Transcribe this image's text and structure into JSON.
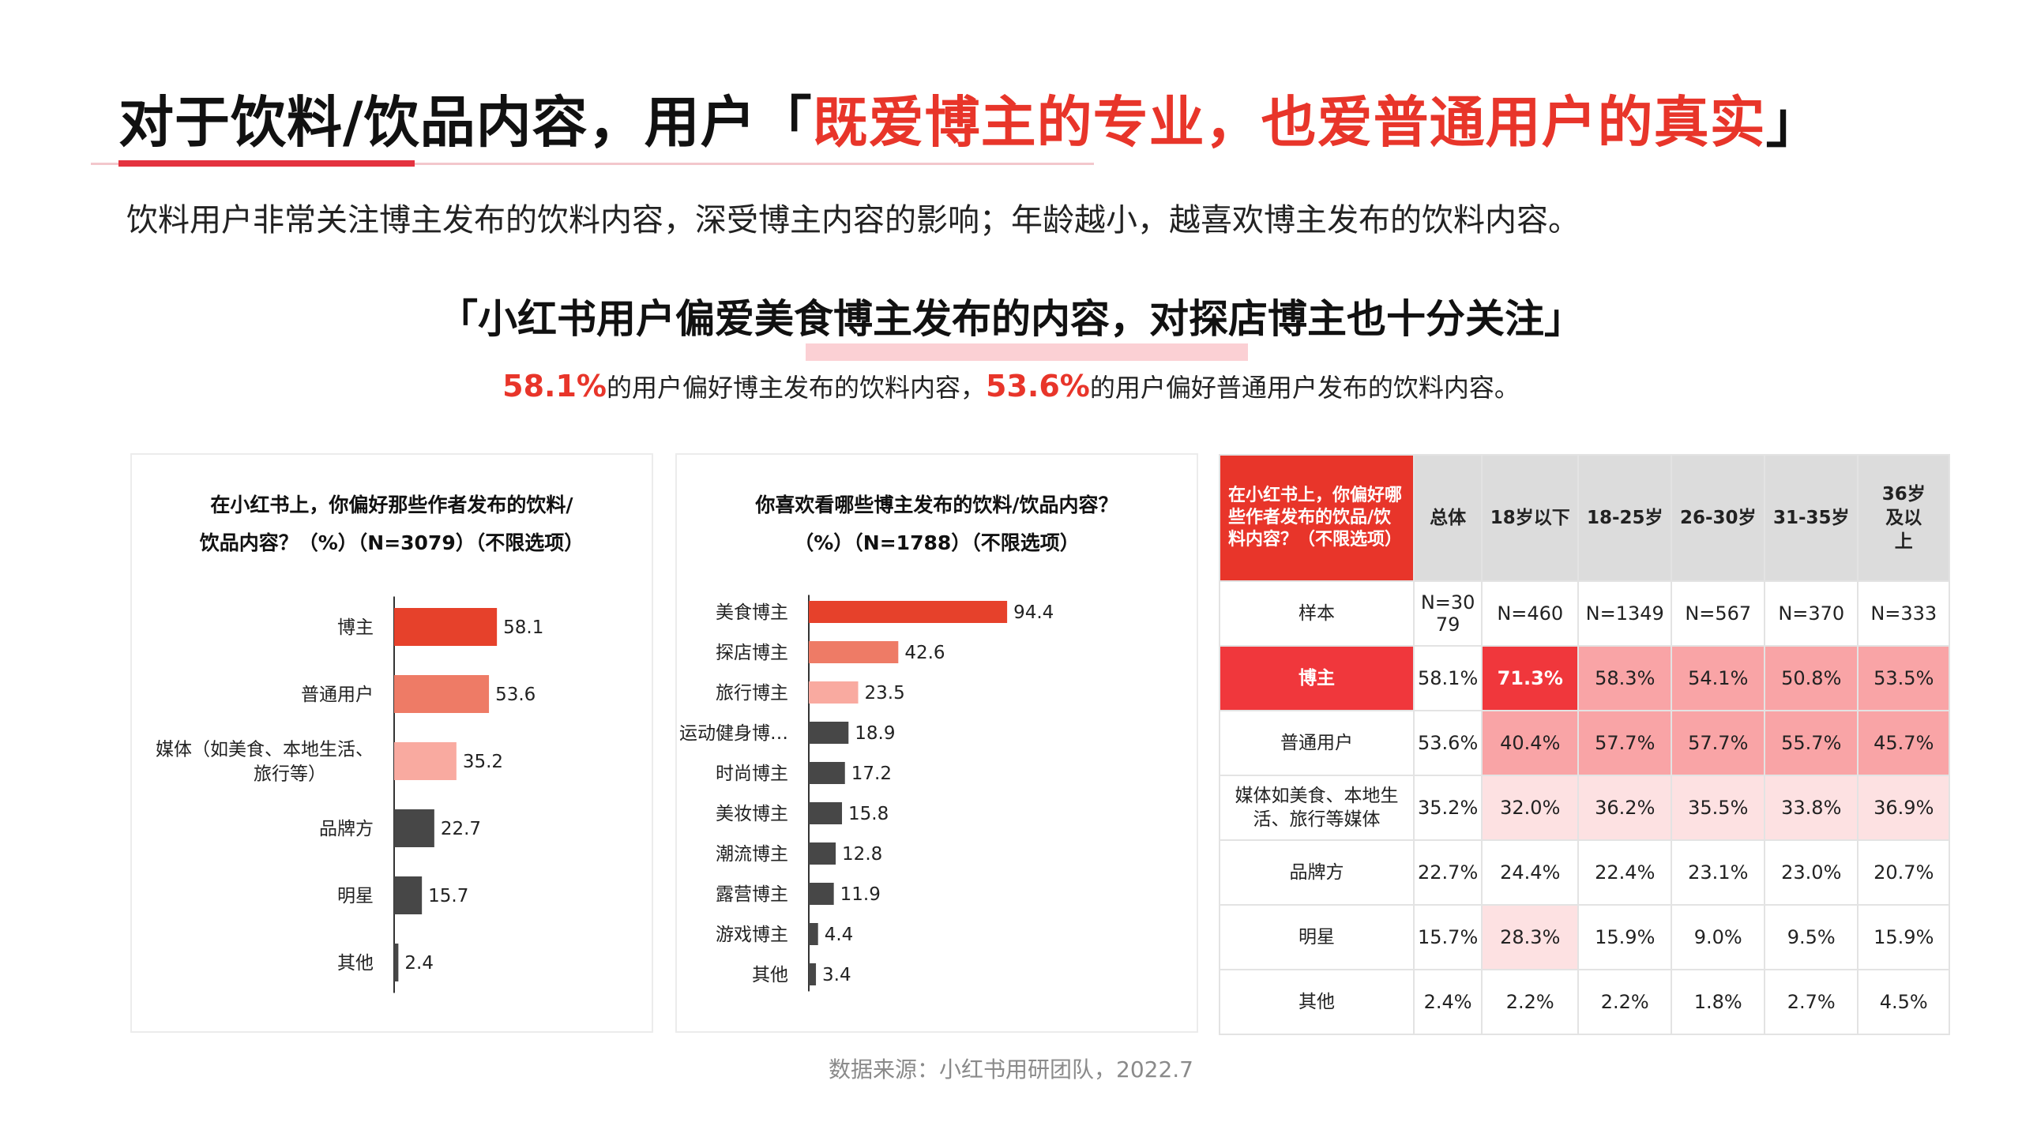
{
  "header": {
    "title_part1": "对于饮料/饮品内容，用户「",
    "title_highlight": "既爱博主的专业，也爱普通用户的真实",
    "title_part2": "」",
    "subtitle": "饮料用户非常关注博主发布的饮料内容，深受博主内容的影响；年龄越小，越喜欢博主发布的饮料内容。"
  },
  "section": {
    "title": "「小红书用户偏爱美食博主发布的内容，对探店博主也十分关注」",
    "sub_num1": "58.1%",
    "sub_text1": "的用户偏好博主发布的饮料内容，",
    "sub_num2": "53.6%",
    "sub_text2": "的用户偏好普通用户发布的饮料内容。"
  },
  "chart_data": [
    {
      "type": "bar",
      "orientation": "horizontal",
      "title": "在小红书上，你偏好那些作者发布的饮料/\n饮品内容？（%）（N=3079）（不限选项）",
      "categories": [
        "博主",
        "普通用户",
        "媒体（如美食、本地生活、\n旅行等）",
        "品牌方",
        "明星",
        "其他"
      ],
      "values": [
        58.1,
        53.6,
        35.2,
        22.7,
        15.7,
        2.4
      ],
      "value_labels": [
        "58.1",
        "53.6",
        "35.2",
        "22.7",
        "15.7",
        "2.4"
      ],
      "colors": [
        "#e6412b",
        "#ee7b66",
        "#f9aaa0",
        "#474747",
        "#474747",
        "#474747"
      ],
      "xlim": [
        0,
        100
      ],
      "grid": false
    },
    {
      "type": "bar",
      "orientation": "horizontal",
      "title": "你喜欢看哪些博主发布的饮料/饮品内容？\n（%）（N=1788）（不限选项）",
      "categories": [
        "美食博主",
        "探店博主",
        "旅行博主",
        "运动健身博…",
        "时尚博主",
        "美妆博主",
        "潮流博主",
        "露营博主",
        "游戏博主",
        "其他"
      ],
      "values": [
        94.4,
        42.6,
        23.5,
        18.9,
        17.2,
        15.8,
        12.8,
        11.9,
        4.4,
        3.4
      ],
      "value_labels": [
        "94.4",
        "42.6",
        "23.5",
        "18.9",
        "17.2",
        "15.8",
        "12.8",
        "11.9",
        "4.4",
        "3.4"
      ],
      "colors": [
        "#e6412b",
        "#ee7b66",
        "#f9aaa0",
        "#474747",
        "#474747",
        "#474747",
        "#474747",
        "#474747",
        "#474747",
        "#474747"
      ],
      "xlim": [
        0,
        100
      ],
      "grid": false
    },
    {
      "type": "table",
      "question": "在小红书上，你偏好哪些作者发布的饮品/饮料内容？（不限选项）",
      "columns": [
        "总体",
        "18岁以下",
        "18-25岁",
        "26-30岁",
        "31-35岁",
        "36岁及以上"
      ],
      "sample_label": "样本",
      "sample": [
        "N=3079",
        "N=460",
        "N=1349",
        "N=567",
        "N=370",
        "N=333"
      ],
      "rows": [
        {
          "label": "博主",
          "values": [
            "58.1%",
            "71.3%",
            "58.3%",
            "54.1%",
            "50.8%",
            "53.5%"
          ],
          "shades": [
            "none",
            "strong",
            "mid",
            "mid",
            "mid",
            "mid"
          ]
        },
        {
          "label": "普通用户",
          "values": [
            "53.6%",
            "40.4%",
            "57.7%",
            "57.7%",
            "55.7%",
            "45.7%"
          ],
          "shades": [
            "none",
            "mid",
            "mid",
            "mid",
            "mid",
            "mid"
          ]
        },
        {
          "label": "媒体如美食、本地生活、旅行等媒体",
          "values": [
            "35.2%",
            "32.0%",
            "36.2%",
            "35.5%",
            "33.8%",
            "36.9%"
          ],
          "shades": [
            "none",
            "light",
            "light",
            "light",
            "light",
            "light"
          ]
        },
        {
          "label": "品牌方",
          "values": [
            "22.7%",
            "24.4%",
            "22.4%",
            "23.1%",
            "23.0%",
            "20.7%"
          ],
          "shades": [
            "none",
            "none",
            "none",
            "none",
            "none",
            "none"
          ]
        },
        {
          "label": "明星",
          "values": [
            "15.7%",
            "28.3%",
            "15.9%",
            "9.0%",
            "9.5%",
            "15.9%"
          ],
          "shades": [
            "none",
            "light",
            "none",
            "none",
            "none",
            "none"
          ]
        },
        {
          "label": "其他",
          "values": [
            "2.4%",
            "2.2%",
            "2.2%",
            "1.8%",
            "2.7%",
            "4.5%"
          ],
          "shades": [
            "none",
            "none",
            "none",
            "none",
            "none",
            "none"
          ]
        }
      ],
      "shade_colors": {
        "strong": "#f0373c",
        "mid": "#f9a4a6",
        "light": "#fde1e2",
        "none": "#ffffff"
      }
    }
  ],
  "source": "数据来源：小红书用研团队，2022.7"
}
